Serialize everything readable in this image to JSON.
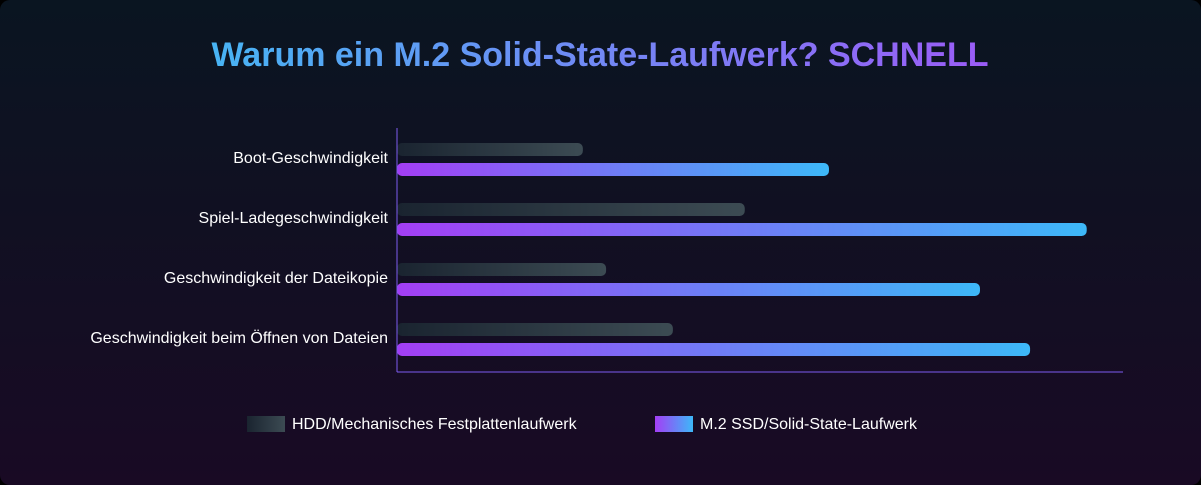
{
  "chart_data": {
    "type": "hbar",
    "title": "Warum ein M.2 Solid-State-Laufwerk? SCHNELL",
    "categories": [
      "Boot-Geschwindigkeit",
      "Spiel-Ladegeschwindigkeit",
      "Geschwindigkeit der Dateikopie",
      "Geschwindigkeit beim Öffnen von Dateien"
    ],
    "series": [
      {
        "name": "HDD/Mechanisches Festplattenlaufwerk",
        "color": [
          "#1a2430",
          "#3c4b53"
        ],
        "values": [
          25.6,
          47.9,
          28.8,
          38.0
        ]
      },
      {
        "name": "M.2 SSD/Solid-State-Laufwerk",
        "color": [
          "#a33ef5",
          "#3db8f8"
        ],
        "values": [
          59.5,
          95.0,
          80.3,
          87.2
        ]
      }
    ],
    "xlim": [
      0,
      100
    ],
    "title_color": [
      "#48b4f4",
      "#9b5cf6"
    ],
    "axis_color": "#7d5cf0",
    "legend": "bottom"
  }
}
